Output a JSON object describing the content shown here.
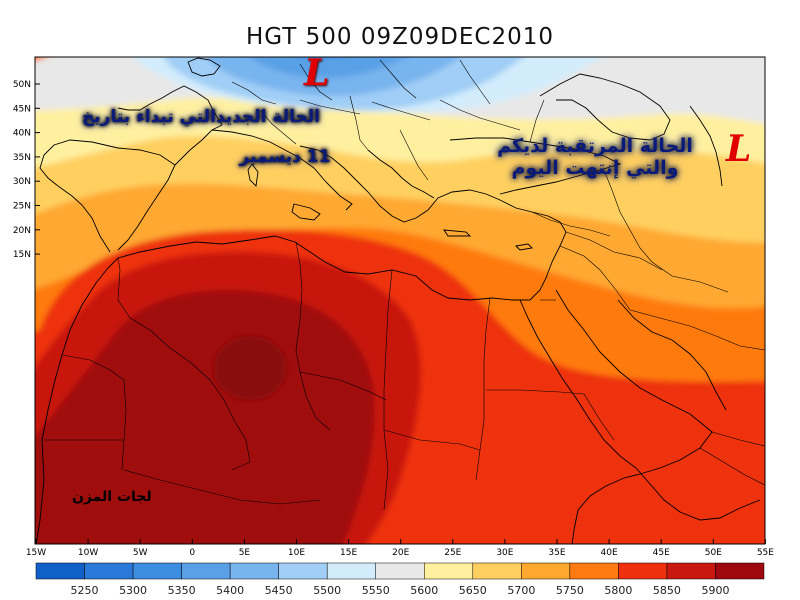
{
  "title": "HGT 500 09Z09DEC2010",
  "lat_labels": [
    "50N",
    "45N",
    "40N",
    "35N",
    "30N",
    "25N",
    "20N",
    "15N"
  ],
  "lon_labels": [
    "15W",
    "10W",
    "5W",
    "0",
    "5E",
    "10E",
    "15E",
    "20E",
    "25E",
    "30E",
    "35E",
    "40E",
    "45E",
    "50E",
    "55E"
  ],
  "colorbar": {
    "labels": [
      "5250",
      "5300",
      "5350",
      "5400",
      "5450",
      "5500",
      "5550",
      "5600",
      "5650",
      "5700",
      "5750",
      "5800",
      "5850",
      "5900"
    ],
    "colors": [
      "#1060c8",
      "#2a78d8",
      "#3c8ce0",
      "#5aa0e6",
      "#78b4ee",
      "#a0cef6",
      "#d2ecfc",
      "#e8e8e8",
      "#fff0a0",
      "#ffd060",
      "#ffa830",
      "#ff7a10",
      "#ee3010",
      "#c81810",
      "#a00810"
    ]
  },
  "annotations": {
    "left_line1": "الحالة الجديدالتي تبداء بتاريخ",
    "left_line2": "11 ديسمبر",
    "right_line1": "الحالة المرتقبة لديكم",
    "right_line2": "والتي إنتهت  اليوم",
    "low_symbol": "L",
    "watermark": "لجات المزن"
  }
}
